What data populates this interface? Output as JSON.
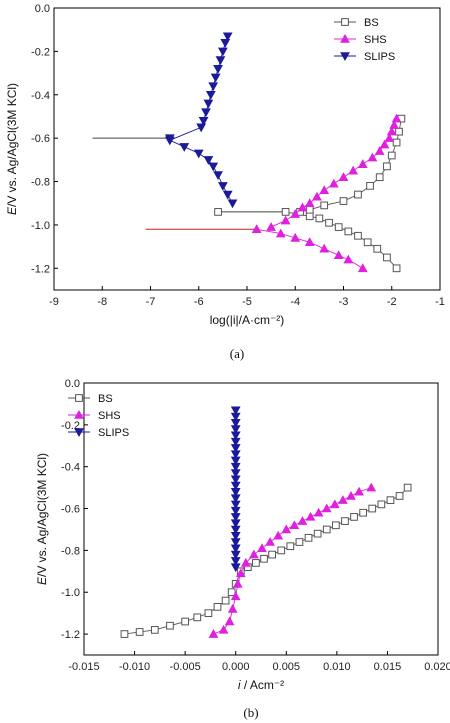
{
  "chart_data": [
    {
      "type": "line",
      "panel_label": "(a)",
      "xlabel": "log(|i|/A·cm⁻²)",
      "ylabel_prefix": "E",
      "ylabel_rest": "/V vs. Ag/AgCl(3M KCl)",
      "xlim": [
        -9,
        -1
      ],
      "ylim": [
        -1.3,
        0.0
      ],
      "x_ticks": [
        -9,
        -8,
        -7,
        -6,
        -5,
        -4,
        -3,
        -2,
        -1
      ],
      "y_ticks": [
        0.0,
        -0.2,
        -0.4,
        -0.6,
        -0.8,
        -1.0,
        -1.2
      ],
      "legend": "top-right",
      "grid": false,
      "series": [
        {
          "name": "BS",
          "marker": "square",
          "color": "#555555",
          "fill": "#ffffff",
          "points": [
            [
              -4.2,
              -0.94
            ],
            [
              -3.7,
              -0.96
            ],
            [
              -3.5,
              -0.97
            ],
            [
              -3.3,
              -0.99
            ],
            [
              -3.1,
              -1.01
            ],
            [
              -2.9,
              -1.03
            ],
            [
              -2.7,
              -1.05
            ],
            [
              -2.5,
              -1.08
            ],
            [
              -2.3,
              -1.11
            ],
            [
              -2.1,
              -1.15
            ],
            [
              -1.9,
              -1.2
            ],
            [
              -5.6,
              -0.94
            ],
            [
              -3.9,
              -0.94
            ],
            [
              -3.7,
              -0.93
            ],
            [
              -3.4,
              -0.91
            ],
            [
              -3.0,
              -0.89
            ],
            [
              -2.7,
              -0.86
            ],
            [
              -2.45,
              -0.82
            ],
            [
              -2.25,
              -0.78
            ],
            [
              -2.1,
              -0.73
            ],
            [
              -2.0,
              -0.68
            ],
            [
              -1.9,
              -0.62
            ],
            [
              -1.85,
              -0.57
            ],
            [
              -1.8,
              -0.51
            ]
          ]
        },
        {
          "name": "SHS",
          "marker": "triangle-up",
          "color": "#e020e0",
          "fill": "#e020e0",
          "points": [
            [
              -4.8,
              -1.02
            ],
            [
              -4.3,
              -1.04
            ],
            [
              -4.0,
              -1.06
            ],
            [
              -3.7,
              -1.08
            ],
            [
              -3.4,
              -1.11
            ],
            [
              -3.1,
              -1.14
            ],
            [
              -2.9,
              -1.16
            ],
            [
              -2.6,
              -1.2
            ],
            [
              -4.5,
              -1.01
            ],
            [
              -4.2,
              -0.98
            ],
            [
              -4.0,
              -0.95
            ],
            [
              -3.85,
              -0.92
            ],
            [
              -3.7,
              -0.9
            ],
            [
              -3.55,
              -0.87
            ],
            [
              -3.4,
              -0.84
            ],
            [
              -3.2,
              -0.81
            ],
            [
              -3.0,
              -0.78
            ],
            [
              -2.8,
              -0.75
            ],
            [
              -2.6,
              -0.72
            ],
            [
              -2.4,
              -0.69
            ],
            [
              -2.25,
              -0.66
            ],
            [
              -2.15,
              -0.63
            ],
            [
              -2.05,
              -0.6
            ],
            [
              -2.0,
              -0.57
            ],
            [
              -1.95,
              -0.54
            ],
            [
              -1.9,
              -0.51
            ]
          ]
        },
        {
          "name": "SLIPS",
          "marker": "triangle-down",
          "color": "#1a1a9a",
          "fill": "#1a1a9a",
          "points": [
            [
              -6.6,
              -0.6
            ],
            [
              -5.4,
              -0.13
            ],
            [
              -5.45,
              -0.16
            ],
            [
              -5.5,
              -0.2
            ],
            [
              -5.55,
              -0.24
            ],
            [
              -5.6,
              -0.28
            ],
            [
              -5.65,
              -0.32
            ],
            [
              -5.7,
              -0.36
            ],
            [
              -5.75,
              -0.4
            ],
            [
              -5.8,
              -0.44
            ],
            [
              -5.85,
              -0.48
            ],
            [
              -5.9,
              -0.52
            ],
            [
              -5.95,
              -0.55
            ],
            [
              -6.6,
              -0.61
            ],
            [
              -6.3,
              -0.64
            ],
            [
              -6.0,
              -0.67
            ],
            [
              -5.8,
              -0.7
            ],
            [
              -5.7,
              -0.73
            ],
            [
              -5.6,
              -0.77
            ],
            [
              -5.5,
              -0.82
            ],
            [
              -5.4,
              -0.86
            ],
            [
              -5.3,
              -0.9
            ]
          ]
        }
      ]
    },
    {
      "type": "line",
      "panel_label": "(b)",
      "xlabel_prefix": "i",
      "xlabel_rest": " / Acm⁻²",
      "ylabel_prefix": "E",
      "ylabel_rest": "/V vs. Ag/AgCl(3M KCl)",
      "xlim": [
        -0.015,
        0.02
      ],
      "ylim": [
        -1.3,
        0.0
      ],
      "x_ticks": [
        "-0.015",
        "-0.010",
        "-0.005",
        "0.000",
        "0.005",
        "0.010",
        "0.015",
        "0.020"
      ],
      "x_tick_values": [
        -0.015,
        -0.01,
        -0.005,
        0.0,
        0.005,
        0.01,
        0.015,
        0.02
      ],
      "y_ticks": [
        "0.0",
        "-0.2",
        "-0.4",
        "-0.6",
        "-0.8",
        "-1.0",
        "-1.2"
      ],
      "y_tick_values": [
        0.0,
        -0.2,
        -0.4,
        -0.6,
        -0.8,
        -1.0,
        -1.2
      ],
      "legend": "top-left",
      "grid": false,
      "series": [
        {
          "name": "BS",
          "marker": "square",
          "color": "#555555",
          "fill": "#ffffff",
          "points": [
            [
              -0.011,
              -1.2
            ],
            [
              -0.0095,
              -1.19
            ],
            [
              -0.008,
              -1.18
            ],
            [
              -0.0065,
              -1.16
            ],
            [
              -0.005,
              -1.14
            ],
            [
              -0.0038,
              -1.12
            ],
            [
              -0.0027,
              -1.1
            ],
            [
              -0.0018,
              -1.07
            ],
            [
              -0.001,
              -1.04
            ],
            [
              -0.0004,
              -1.0
            ],
            [
              0.0,
              -0.96
            ],
            [
              0.0005,
              -0.9
            ],
            [
              0.0012,
              -0.88
            ],
            [
              0.002,
              -0.86
            ],
            [
              0.0028,
              -0.84
            ],
            [
              0.0036,
              -0.82
            ],
            [
              0.0045,
              -0.8
            ],
            [
              0.0054,
              -0.78
            ],
            [
              0.0063,
              -0.76
            ],
            [
              0.0072,
              -0.74
            ],
            [
              0.0081,
              -0.72
            ],
            [
              0.009,
              -0.7
            ],
            [
              0.0099,
              -0.68
            ],
            [
              0.0108,
              -0.66
            ],
            [
              0.0117,
              -0.64
            ],
            [
              0.0126,
              -0.62
            ],
            [
              0.0135,
              -0.6
            ],
            [
              0.0144,
              -0.58
            ],
            [
              0.0153,
              -0.56
            ],
            [
              0.0162,
              -0.54
            ],
            [
              0.017,
              -0.5
            ]
          ]
        },
        {
          "name": "SHS",
          "marker": "triangle-up",
          "color": "#e020e0",
          "fill": "#e020e0",
          "points": [
            [
              -0.0022,
              -1.2
            ],
            [
              -0.0012,
              -1.18
            ],
            [
              -0.0006,
              -1.14
            ],
            [
              -0.0003,
              -1.08
            ],
            [
              0.0,
              -1.02
            ],
            [
              0.0002,
              -0.96
            ],
            [
              0.0005,
              -0.91
            ],
            [
              0.001,
              -0.86
            ],
            [
              0.0018,
              -0.82
            ],
            [
              0.0026,
              -0.79
            ],
            [
              0.0034,
              -0.76
            ],
            [
              0.0042,
              -0.73
            ],
            [
              0.005,
              -0.7
            ],
            [
              0.0058,
              -0.68
            ],
            [
              0.0066,
              -0.66
            ],
            [
              0.0074,
              -0.64
            ],
            [
              0.0082,
              -0.62
            ],
            [
              0.009,
              -0.6
            ],
            [
              0.0098,
              -0.58
            ],
            [
              0.0106,
              -0.56
            ],
            [
              0.0114,
              -0.54
            ],
            [
              0.0122,
              -0.52
            ],
            [
              0.0134,
              -0.5
            ]
          ]
        },
        {
          "name": "SLIPS",
          "marker": "triangle-down",
          "color": "#1a1a9a",
          "fill": "#1a1a9a",
          "points": [
            [
              0.0,
              -0.13
            ],
            [
              0.0,
              -0.16
            ],
            [
              0.0,
              -0.19
            ],
            [
              0.0,
              -0.22
            ],
            [
              0.0,
              -0.25
            ],
            [
              0.0,
              -0.28
            ],
            [
              0.0,
              -0.31
            ],
            [
              0.0,
              -0.34
            ],
            [
              0.0,
              -0.37
            ],
            [
              0.0,
              -0.4
            ],
            [
              0.0,
              -0.43
            ],
            [
              0.0,
              -0.46
            ],
            [
              0.0,
              -0.49
            ],
            [
              0.0,
              -0.52
            ],
            [
              0.0,
              -0.55
            ],
            [
              0.0,
              -0.58
            ],
            [
              0.0,
              -0.61
            ],
            [
              0.0,
              -0.64
            ],
            [
              0.0,
              -0.67
            ],
            [
              0.0,
              -0.7
            ],
            [
              0.0,
              -0.73
            ],
            [
              0.0,
              -0.76
            ],
            [
              0.0,
              -0.79
            ],
            [
              0.0,
              -0.82
            ],
            [
              0.0,
              -0.85
            ],
            [
              0.0,
              -0.88
            ]
          ]
        }
      ]
    }
  ]
}
